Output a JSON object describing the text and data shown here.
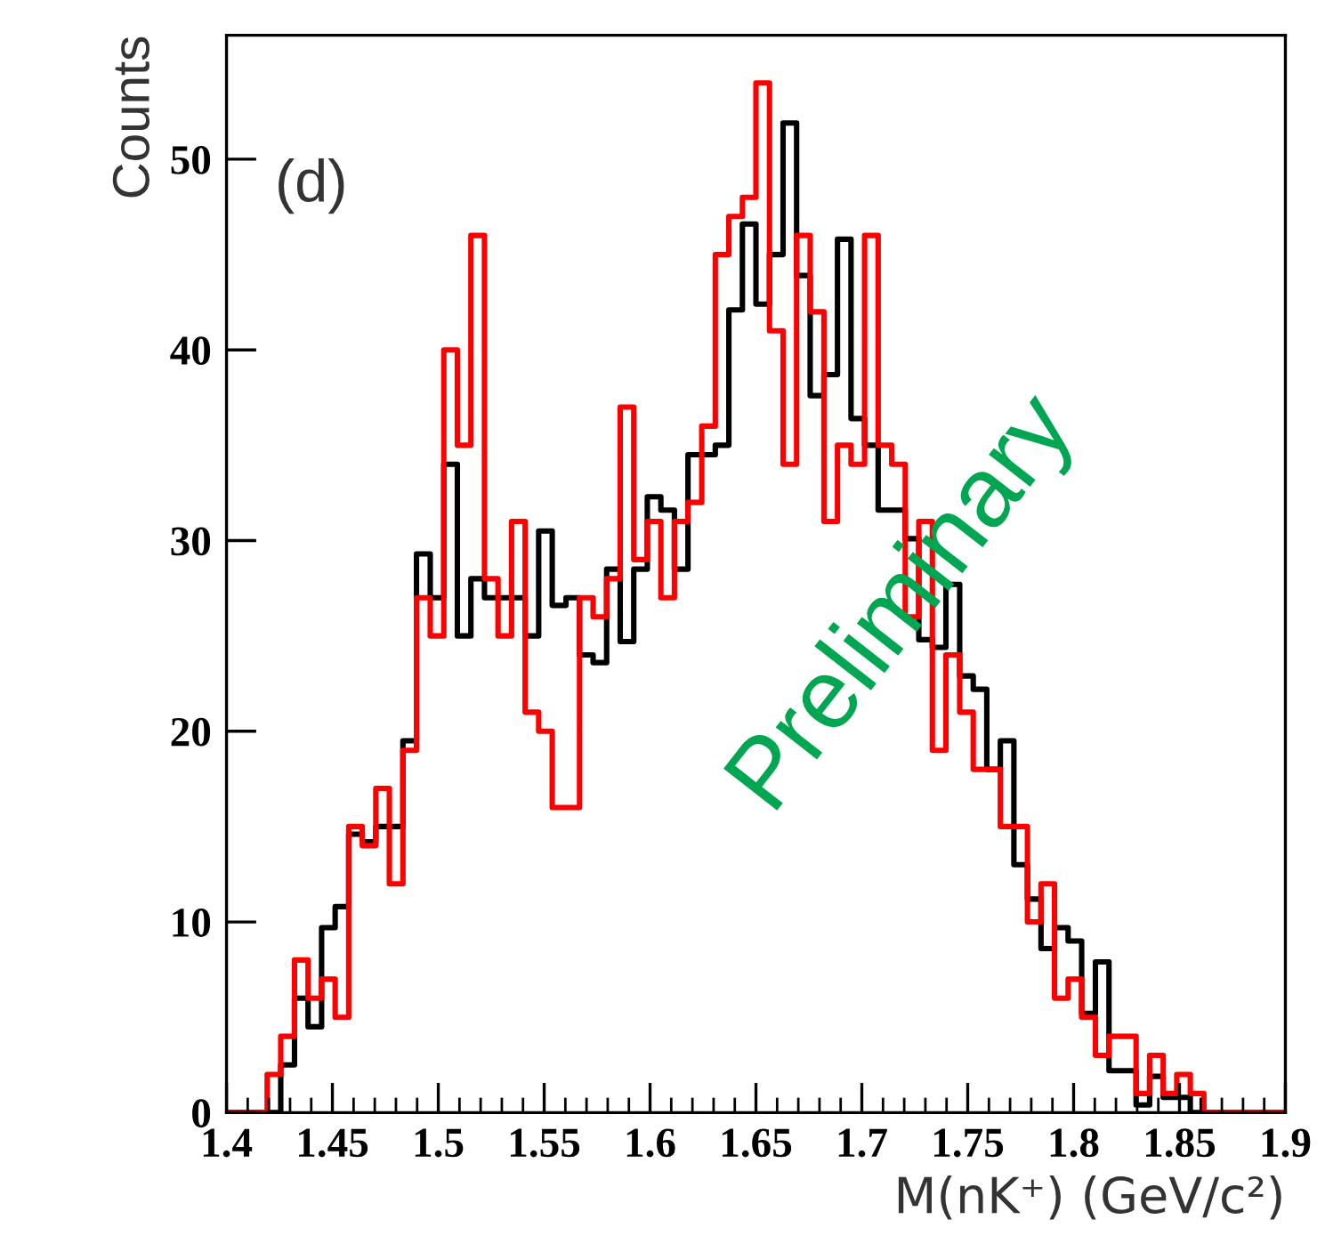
{
  "chart_data": {
    "type": "histogram",
    "xlabel": "M(nK⁺) (GeV/c²)",
    "ylabel": "Counts",
    "annotations": [
      "(d)",
      "Preliminary"
    ],
    "bins": [
      1.4,
      1.4064,
      1.4128,
      1.4192,
      1.4256,
      1.4321,
      1.4385,
      1.4449,
      1.4513,
      1.4577,
      1.4641,
      1.4705,
      1.4769,
      1.4833,
      1.4897,
      1.4962,
      1.5026,
      1.509,
      1.5154,
      1.5218,
      1.5282,
      1.5346,
      1.541,
      1.5474,
      1.5538,
      1.5603,
      1.5667,
      1.5731,
      1.5795,
      1.5859,
      1.5923,
      1.5987,
      1.6051,
      1.6115,
      1.6179,
      1.6244,
      1.6308,
      1.6372,
      1.6436,
      1.65,
      1.6564,
      1.6628,
      1.6692,
      1.6756,
      1.6821,
      1.6885,
      1.6949,
      1.7013,
      1.7077,
      1.7141,
      1.7205,
      1.7269,
      1.7333,
      1.7397,
      1.7462,
      1.7526,
      1.759,
      1.7654,
      1.7718,
      1.7782,
      1.7846,
      1.791,
      1.7974,
      1.8038,
      1.8103,
      1.8167,
      1.8231,
      1.8295,
      1.8359,
      1.8423,
      1.8487,
      1.8551,
      1.8615,
      1.8679,
      1.8744,
      1.8808,
      1.8872,
      1.8936,
      1.9
    ],
    "series": [
      {
        "color": "#000000",
        "values": [
          0,
          0,
          0,
          0,
          2.5,
          6,
          4.5,
          9.7,
          10.8,
          14.6,
          14.2,
          15,
          15,
          19.5,
          29.3,
          27,
          34,
          25,
          28,
          27,
          27,
          27,
          25,
          30.5,
          26.6,
          27,
          24,
          23.6,
          28.5,
          24.7,
          28.5,
          32.3,
          31.6,
          28.5,
          34.5,
          34.5,
          35,
          42.1,
          46.6,
          42.4,
          45,
          51.9,
          43.9,
          37.6,
          38.7,
          45.8,
          36.4,
          35,
          31.6,
          31.6,
          30.1,
          24.8,
          24.4,
          27.7,
          22.9,
          22.2,
          18,
          19.5,
          13,
          11.2,
          8.6,
          9.7,
          9,
          5.2,
          7.9,
          2.2,
          2.2,
          0.4,
          1.9,
          0.8,
          0.8,
          0,
          0,
          0,
          0,
          0,
          0,
          0
        ]
      },
      {
        "color": "#ff0000",
        "values": [
          0,
          0,
          0,
          2,
          4,
          8,
          6,
          7,
          5,
          15,
          14,
          17,
          12,
          19,
          27,
          25,
          40,
          35,
          46,
          28,
          25,
          31,
          21,
          20,
          16,
          16,
          27,
          26,
          28,
          37,
          29,
          31,
          27,
          31,
          32,
          36,
          45,
          47,
          48,
          54,
          41,
          34,
          46,
          42,
          31,
          35,
          34,
          46,
          35,
          34,
          26,
          31,
          19,
          24,
          21,
          18,
          18,
          15,
          15,
          10,
          12,
          6,
          7,
          5,
          3,
          4,
          4,
          1,
          3,
          1,
          2,
          1,
          0,
          0,
          0,
          0,
          0,
          0
        ]
      }
    ],
    "xlim": [
      1.4,
      1.9
    ],
    "xticks": [
      1.4,
      1.45,
      1.5,
      1.55,
      1.6,
      1.65,
      1.7,
      1.75,
      1.8,
      1.85,
      1.9
    ],
    "ylim": [
      0,
      56.5
    ],
    "yticks": [
      0,
      10,
      20,
      30,
      40,
      50
    ]
  }
}
